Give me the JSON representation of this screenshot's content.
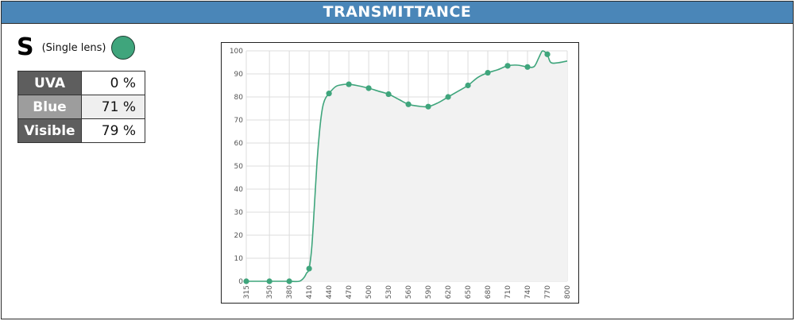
{
  "header": {
    "title": "TRANSMITTANCE"
  },
  "lens": {
    "letter": "S",
    "type_label": "(Single lens)",
    "color": "#3fa57c"
  },
  "transmittance_table": [
    {
      "label": "UVA",
      "value": "0 %"
    },
    {
      "label": "Blue",
      "value": "71 %"
    },
    {
      "label": "Visible",
      "value": "79 %"
    }
  ],
  "chart_data": {
    "type": "line",
    "title": "",
    "xlabel": "",
    "ylabel": "",
    "x_ticks": [
      315,
      350,
      380,
      410,
      440,
      470,
      500,
      530,
      560,
      590,
      620,
      650,
      680,
      710,
      740,
      770,
      800
    ],
    "y_ticks": [
      0,
      10,
      20,
      30,
      40,
      50,
      60,
      70,
      80,
      90,
      100
    ],
    "xlim": [
      315,
      800
    ],
    "ylim": [
      0,
      100
    ],
    "grid": true,
    "line_color": "#3fa57c",
    "fill_color": "#f2f2f2",
    "series": [
      {
        "points": [
          [
            315,
            0
          ],
          [
            330,
            0
          ],
          [
            350,
            0
          ],
          [
            365,
            0
          ],
          [
            380,
            0
          ],
          [
            395,
            0
          ],
          [
            402,
            1.5
          ],
          [
            406,
            3.5
          ],
          [
            410,
            5.5
          ],
          [
            414,
            15
          ],
          [
            418,
            33
          ],
          [
            422,
            52
          ],
          [
            426,
            66
          ],
          [
            430,
            75
          ],
          [
            434,
            79
          ],
          [
            440,
            81.5
          ],
          [
            450,
            84.5
          ],
          [
            460,
            85.3
          ],
          [
            470,
            85.5
          ],
          [
            485,
            84.8
          ],
          [
            500,
            83.8
          ],
          [
            515,
            82.5
          ],
          [
            530,
            81.2
          ],
          [
            545,
            79
          ],
          [
            560,
            76.8
          ],
          [
            575,
            76
          ],
          [
            590,
            75.8
          ],
          [
            605,
            77.5
          ],
          [
            620,
            80
          ],
          [
            635,
            82.5
          ],
          [
            650,
            85
          ],
          [
            665,
            88.5
          ],
          [
            680,
            90.5
          ],
          [
            695,
            91.8
          ],
          [
            710,
            93.5
          ],
          [
            725,
            93.8
          ],
          [
            740,
            93
          ],
          [
            750,
            93.2
          ],
          [
            757,
            97
          ],
          [
            762,
            99.8
          ],
          [
            766,
            99.6
          ],
          [
            770,
            98.5
          ],
          [
            775,
            95
          ],
          [
            785,
            94.8
          ],
          [
            800,
            95.6
          ]
        ],
        "markers": [
          [
            315,
            0
          ],
          [
            350,
            0
          ],
          [
            380,
            0
          ],
          [
            410,
            5.5
          ],
          [
            440,
            81.5
          ],
          [
            470,
            85.5
          ],
          [
            500,
            83.8
          ],
          [
            530,
            81.2
          ],
          [
            560,
            76.8
          ],
          [
            590,
            75.8
          ],
          [
            620,
            80
          ],
          [
            650,
            85
          ],
          [
            680,
            90.5
          ],
          [
            710,
            93.5
          ],
          [
            740,
            93
          ],
          [
            770,
            98.5
          ]
        ]
      }
    ]
  }
}
